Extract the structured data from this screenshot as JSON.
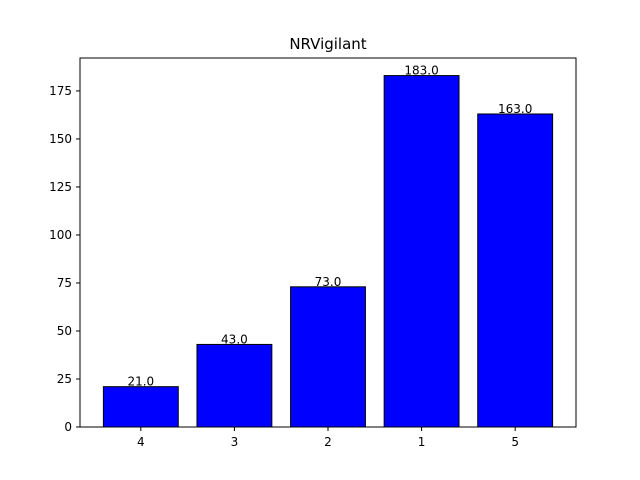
{
  "chart_data": {
    "type": "bar",
    "title": "NRVigilant",
    "xlabel": "",
    "ylabel": "",
    "categories": [
      "4",
      "3",
      "2",
      "1",
      "5"
    ],
    "values": [
      21.0,
      43.0,
      73.0,
      183.0,
      163.0
    ],
    "value_labels": [
      "21.0",
      "43.0",
      "73.0",
      "183.0",
      "163.0"
    ],
    "ylim": [
      0,
      192.15
    ],
    "yticks": [
      0,
      25,
      50,
      75,
      100,
      125,
      150,
      175
    ],
    "grid": false,
    "bar_color": "#0000ff",
    "edge_color": "#000000"
  }
}
